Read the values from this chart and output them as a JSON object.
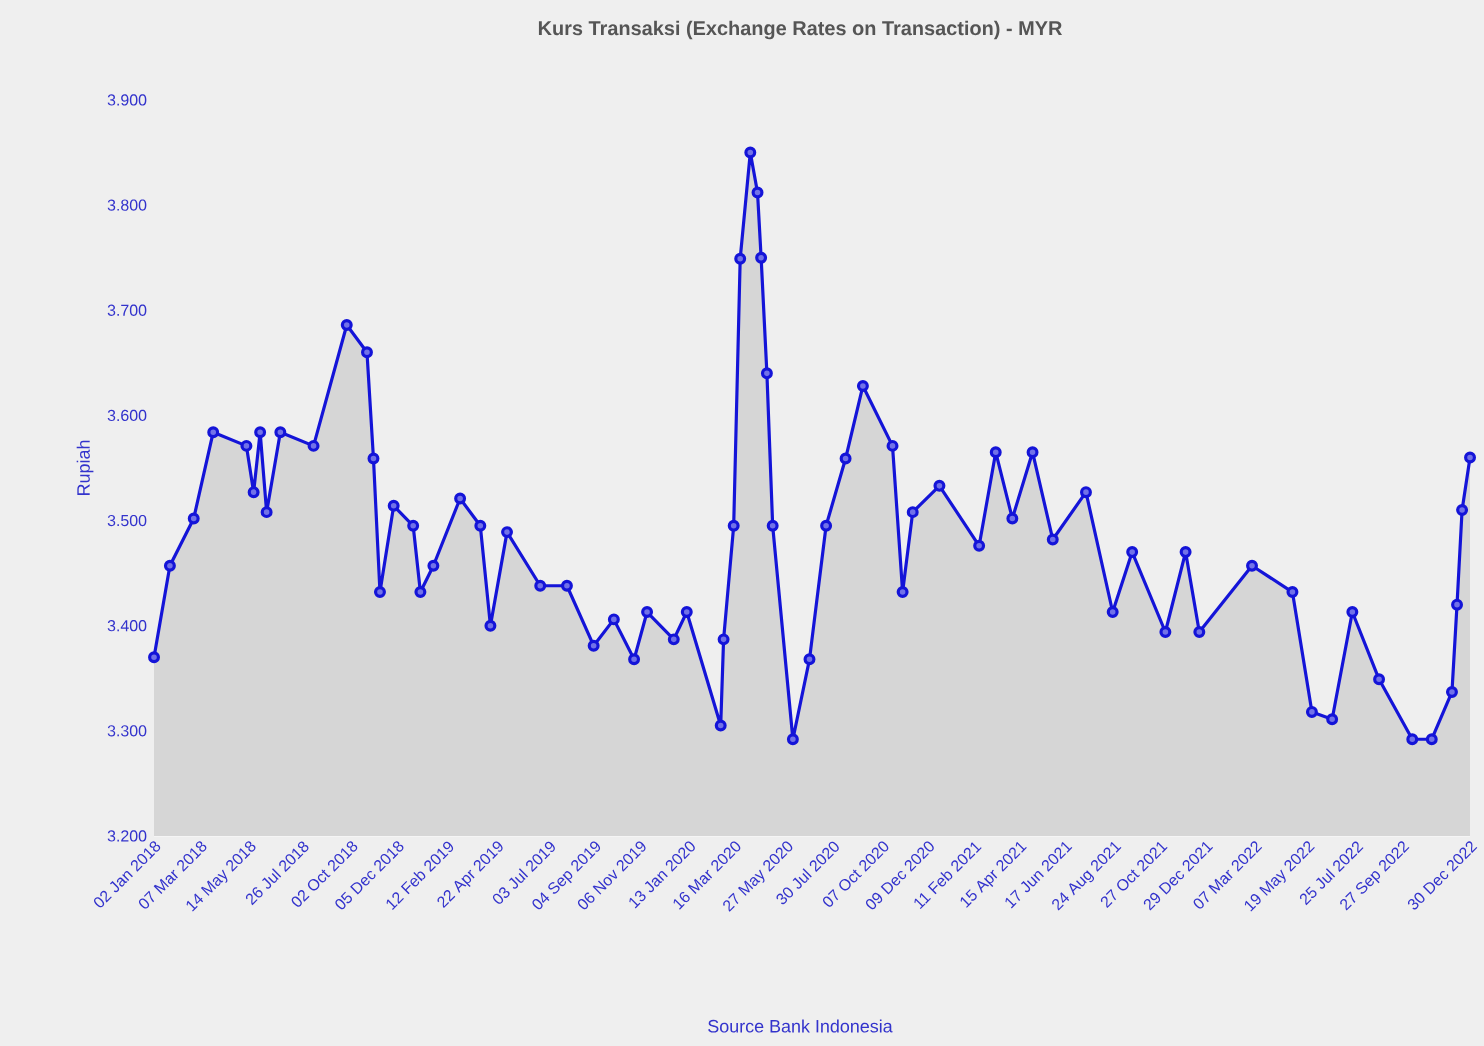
{
  "chart_data": {
    "type": "area",
    "title": "Kurs Transaksi (Exchange Rates on Transaction) - MYR",
    "ylabel": "Rupiah",
    "annotations": [
      "Source Bank Indonesia"
    ],
    "x": [
      "2018-01-02",
      "2018-01-24",
      "2018-02-26",
      "2018-03-25",
      "2018-05-10",
      "2018-05-20",
      "2018-05-29",
      "2018-06-07",
      "2018-06-26",
      "2018-08-11",
      "2018-09-26",
      "2018-10-24",
      "2018-11-02",
      "2018-11-11",
      "2018-11-30",
      "2018-12-27",
      "2019-01-06",
      "2019-01-24",
      "2019-03-02",
      "2019-03-30",
      "2019-04-13",
      "2019-05-06",
      "2019-06-21",
      "2019-07-28",
      "2019-09-03",
      "2019-10-01",
      "2019-10-29",
      "2019-11-16",
      "2019-12-23",
      "2020-01-10",
      "2020-02-26",
      "2020-03-01",
      "2020-03-15",
      "2020-03-24",
      "2020-04-07",
      "2020-04-17",
      "2020-04-22",
      "2020-04-30",
      "2020-05-08",
      "2020-06-05",
      "2020-06-28",
      "2020-07-21",
      "2020-08-17",
      "2020-09-10",
      "2020-10-21",
      "2020-11-04",
      "2020-11-18",
      "2020-12-25",
      "2021-02-18",
      "2021-03-13",
      "2021-04-05",
      "2021-05-03",
      "2021-05-31",
      "2021-07-16",
      "2021-08-22",
      "2021-09-18",
      "2021-11-03",
      "2021-12-01",
      "2021-12-20",
      "2022-03-03",
      "2022-04-28",
      "2022-05-25",
      "2022-06-22",
      "2022-07-20",
      "2022-08-26",
      "2022-10-11",
      "2022-11-07",
      "2022-12-05",
      "2022-12-12",
      "2022-12-19",
      "2022-12-30"
    ],
    "series": [
      {
        "color": "#1414d8",
        "values": [
          3370,
          3457,
          3502,
          3584,
          3571,
          3527,
          3584,
          3508,
          3584,
          3571,
          3686,
          3660,
          3559,
          3432,
          3514,
          3495,
          3432,
          3457,
          3521,
          3495,
          3400,
          3489,
          3438,
          3438,
          3381,
          3406,
          3368,
          3413,
          3387,
          3413,
          3305,
          3387,
          3495,
          3749,
          3850,
          3812,
          3750,
          3640,
          3495,
          3292,
          3368,
          3495,
          3559,
          3628,
          3571,
          3432,
          3508,
          3533,
          3476,
          3565,
          3502,
          3565,
          3482,
          3527,
          3413,
          3470,
          3394,
          3470,
          3394,
          3457,
          3432,
          3318,
          3311,
          3413,
          3349,
          3292,
          3292,
          3337,
          3420,
          3510,
          3560
        ]
      }
    ],
    "xlim": [
      "2018-01-02",
      "2022-12-30"
    ],
    "xticks": [
      {
        "value": "2018-01-02",
        "label": "02 Jan 2018"
      },
      {
        "value": "2018-03-07",
        "label": "07 Mar 2018"
      },
      {
        "value": "2018-05-14",
        "label": "14 May 2018"
      },
      {
        "value": "2018-07-26",
        "label": "26 Jul 2018"
      },
      {
        "value": "2018-10-02",
        "label": "02 Oct 2018"
      },
      {
        "value": "2018-12-05",
        "label": "05 Dec 2018"
      },
      {
        "value": "2019-02-12",
        "label": "12 Feb 2019"
      },
      {
        "value": "2019-04-22",
        "label": "22 Apr 2019"
      },
      {
        "value": "2019-07-03",
        "label": "03 Jul 2019"
      },
      {
        "value": "2019-09-04",
        "label": "04 Sep 2019"
      },
      {
        "value": "2019-11-06",
        "label": "06 Nov 2019"
      },
      {
        "value": "2020-01-13",
        "label": "13 Jan 2020"
      },
      {
        "value": "2020-03-16",
        "label": "16 Mar 2020"
      },
      {
        "value": "2020-05-27",
        "label": "27 May 2020"
      },
      {
        "value": "2020-07-30",
        "label": "30 Jul 2020"
      },
      {
        "value": "2020-10-07",
        "label": "07 Oct 2020"
      },
      {
        "value": "2020-12-09",
        "label": "09 Dec 2020"
      },
      {
        "value": "2021-02-11",
        "label": "11 Feb 2021"
      },
      {
        "value": "2021-04-15",
        "label": "15 Apr 2021"
      },
      {
        "value": "2021-06-17",
        "label": "17 Jun 2021"
      },
      {
        "value": "2021-08-24",
        "label": "24 Aug 2021"
      },
      {
        "value": "2021-10-27",
        "label": "27 Oct 2021"
      },
      {
        "value": "2021-12-29",
        "label": "29 Dec 2021"
      },
      {
        "value": "2022-03-07",
        "label": "07 Mar 2022"
      },
      {
        "value": "2022-05-19",
        "label": "19 May 2022"
      },
      {
        "value": "2022-07-25",
        "label": "25 Jul 2022"
      },
      {
        "value": "2022-09-27",
        "label": "27 Sep 2022"
      },
      {
        "value": "2022-12-30",
        "label": "30 Dec 2022"
      }
    ],
    "ylim": [
      3200,
      3900
    ],
    "yticks": [
      {
        "value": 3200,
        "label": "3.200"
      },
      {
        "value": 3300,
        "label": "3.300"
      },
      {
        "value": 3400,
        "label": "3.400"
      },
      {
        "value": 3500,
        "label": "3.500"
      },
      {
        "value": 3600,
        "label": "3.600"
      },
      {
        "value": 3700,
        "label": "3.700"
      },
      {
        "value": 3800,
        "label": "3.800"
      },
      {
        "value": 3900,
        "label": "3.900"
      }
    ],
    "marker": "circle",
    "grid": false
  }
}
